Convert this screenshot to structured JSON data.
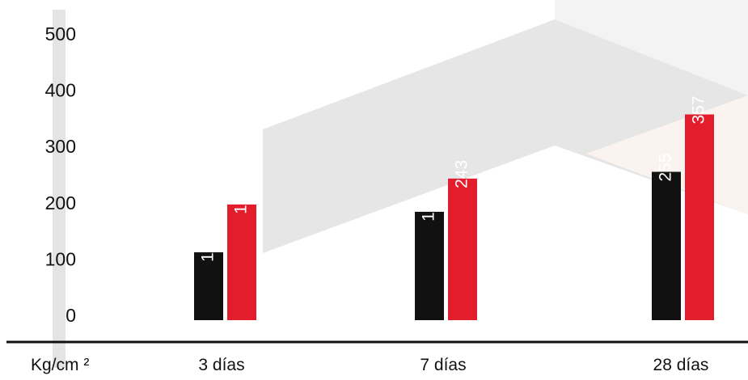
{
  "chart_data": {
    "type": "bar",
    "categories": [
      "3 días",
      "7 días",
      "28 días"
    ],
    "series": [
      {
        "values": [
          112,
          184,
          255
        ],
        "color": "#111111"
      },
      {
        "values": [
          197,
          243,
          357
        ],
        "color": "#e31d2b"
      }
    ],
    "y_ticks": [
      "0",
      "100",
      "200",
      "300",
      "400",
      "500"
    ],
    "ylim": [
      0,
      500
    ],
    "ylabel": "Kg/cm ²",
    "grid": false,
    "bar_labels": "rotated-inside-bars"
  }
}
